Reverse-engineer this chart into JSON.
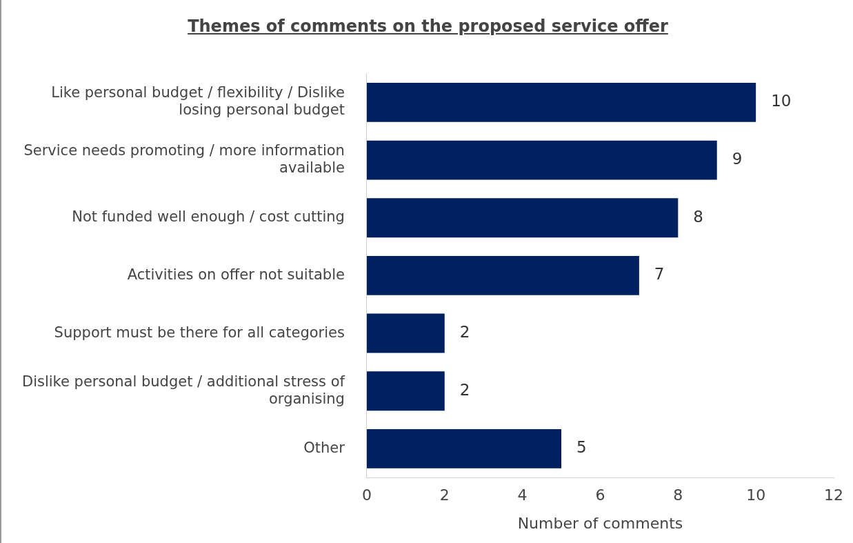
{
  "chart_data": {
    "type": "bar",
    "orientation": "horizontal",
    "title": "Themes of comments on the proposed service offer",
    "xlabel": "Number of comments",
    "categories": [
      "Like personal budget / flexibility / Dislike losing personal budget",
      "Service needs promoting / more information available",
      "Not funded well enough / cost cutting",
      "Activities on offer not suitable",
      "Support must be there for all categories",
      "Dislike personal budget / additional stress of organising",
      "Other"
    ],
    "values": [
      10,
      9,
      8,
      7,
      2,
      2,
      5
    ],
    "color": "#002060",
    "xlim": [
      0,
      12
    ],
    "xticks": [
      0,
      2,
      4,
      6,
      8,
      10,
      12
    ],
    "grid": false,
    "legend": false,
    "data_labels": true
  }
}
